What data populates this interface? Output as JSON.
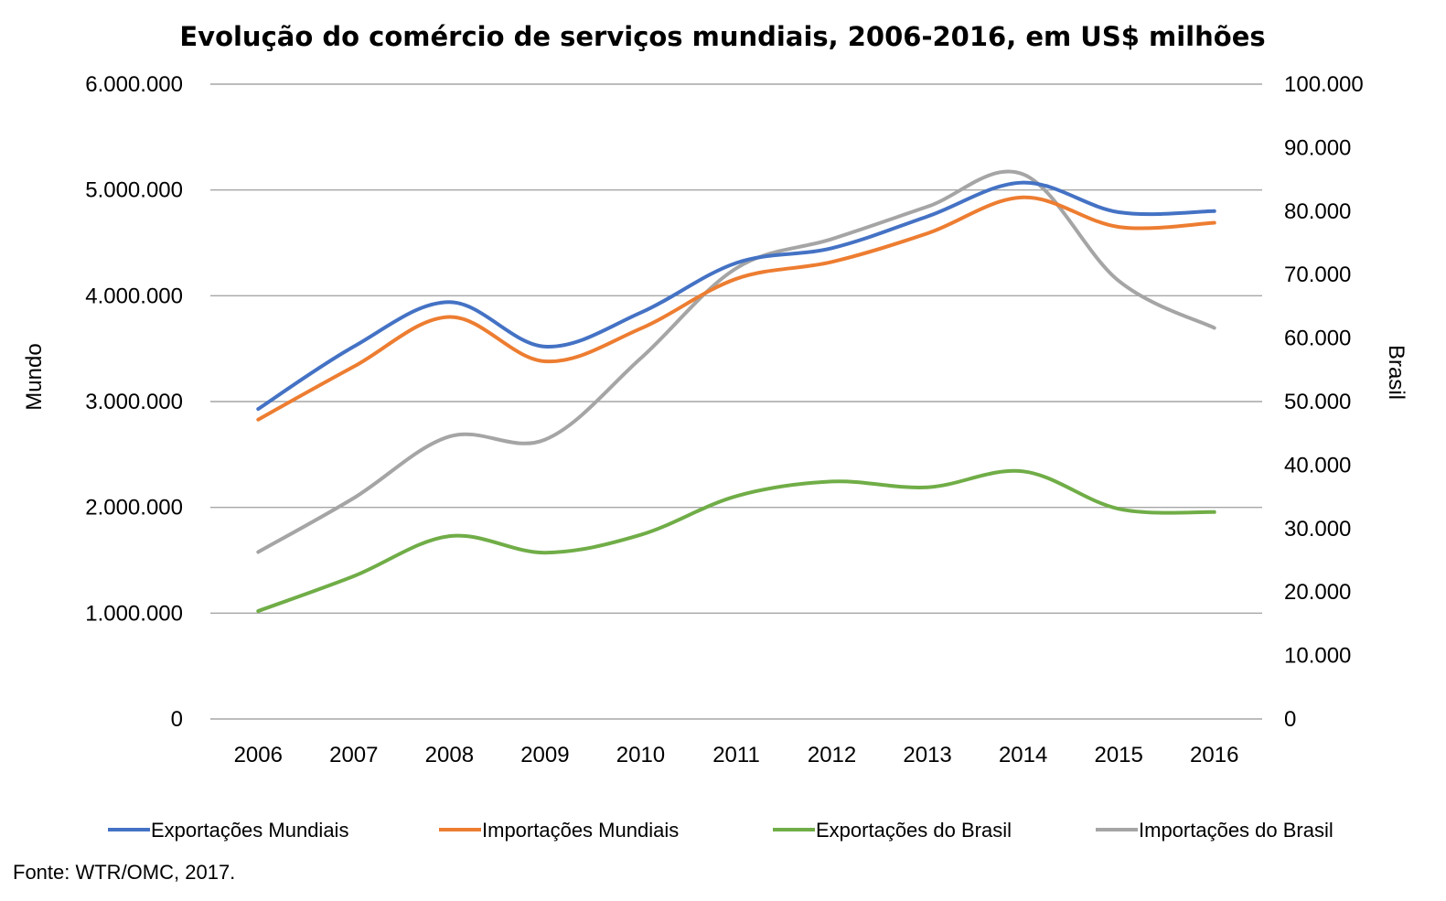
{
  "chart_data": {
    "type": "line",
    "title": "Evolução do comércio de serviços mundiais, 2006-2016, em US$ milhões",
    "x": [
      "2006",
      "2007",
      "2008",
      "2009",
      "2010",
      "2011",
      "2012",
      "2013",
      "2014",
      "2015",
      "2016"
    ],
    "y_left": {
      "label": "Mundo",
      "range": [
        0,
        6000000
      ],
      "ticks": [
        0,
        1000000,
        2000000,
        3000000,
        4000000,
        5000000,
        6000000
      ],
      "tick_labels": [
        "0",
        "1.000.000",
        "2.000.000",
        "3.000.000",
        "4.000.000",
        "5.000.000",
        "6.000.000"
      ]
    },
    "y_right": {
      "label": "Brasil",
      "range": [
        0,
        100000
      ],
      "ticks": [
        0,
        10000,
        20000,
        30000,
        40000,
        50000,
        60000,
        70000,
        80000,
        90000,
        100000
      ],
      "tick_labels": [
        "0",
        "10.000",
        "20.000",
        "30.000",
        "40.000",
        "50.000",
        "60.000",
        "70.000",
        "80.000",
        "90.000",
        "100.000"
      ]
    },
    "series": [
      {
        "name": "Exportações Mundiais",
        "axis": "left",
        "color": "#4472c4",
        "values": [
          2930000,
          3520000,
          3940000,
          3520000,
          3840000,
          4310000,
          4450000,
          4750000,
          5070000,
          4790000,
          4800000
        ]
      },
      {
        "name": "Importações Mundiais",
        "axis": "left",
        "color": "#ed7d31",
        "values": [
          2830000,
          3330000,
          3800000,
          3380000,
          3690000,
          4160000,
          4320000,
          4590000,
          4930000,
          4650000,
          4690000
        ]
      },
      {
        "name": "Exportações do Brasil",
        "axis": "right",
        "color": "#70ad47",
        "values": [
          17000,
          22500,
          28800,
          26200,
          29000,
          35100,
          37400,
          36500,
          39000,
          33100,
          32600
        ]
      },
      {
        "name": "Importações do Brasil",
        "axis": "right",
        "color": "#a5a5a5",
        "values": [
          26300,
          34800,
          44500,
          44000,
          56800,
          71000,
          75600,
          80700,
          85800,
          69000,
          61600
        ]
      }
    ],
    "grid": true,
    "legend_position": "bottom"
  },
  "source_note": "Fonte: WTR/OMC, 2017."
}
